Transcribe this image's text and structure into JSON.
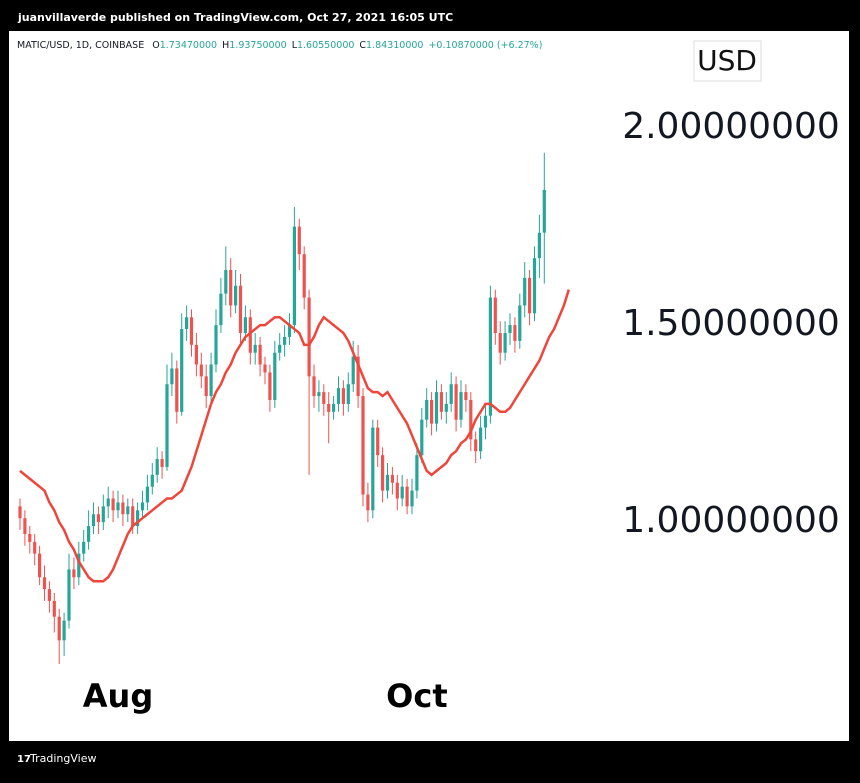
{
  "header": {
    "title": "juanvillaverde published on TradingView.com, Oct 27, 2021 16:05 UTC"
  },
  "footer": {
    "brand": "TradingView"
  },
  "chart_data": {
    "type": "candlestick",
    "legend": {
      "symbol": "MATIC/USD, 1D, COINBASE",
      "items": [
        {
          "label": "O",
          "value": "1.73470000"
        },
        {
          "label": "H",
          "value": "1.93750000"
        },
        {
          "label": "L",
          "value": "1.60550000"
        },
        {
          "label": "C",
          "value": "1.84310000"
        }
      ],
      "change": "+0.10870000 (+6.27%)"
    },
    "currency": "USD",
    "categories": [
      null,
      null,
      null,
      null,
      null,
      null,
      null,
      null,
      null,
      null,
      null,
      null,
      null,
      null,
      null,
      null,
      null,
      null,
      null,
      null,
      "Aug",
      null,
      null,
      null,
      null,
      null,
      null,
      null,
      null,
      null,
      null,
      null,
      null,
      null,
      null,
      null,
      null,
      null,
      null,
      null,
      null,
      null,
      null,
      null,
      null,
      null,
      null,
      null,
      null,
      null,
      null,
      null,
      null,
      null,
      null,
      null,
      null,
      null,
      null,
      null,
      null,
      null,
      null,
      null,
      null,
      null,
      null,
      null,
      null,
      null,
      null,
      null,
      null,
      null,
      null,
      null,
      null,
      null,
      null,
      null,
      null,
      "Oct",
      null,
      null,
      null,
      null,
      null,
      null,
      null,
      null,
      null,
      null,
      null,
      null,
      null,
      null,
      null,
      null,
      null,
      null,
      null,
      null,
      null,
      null,
      null,
      null,
      null,
      null,
      null,
      null,
      null,
      null,
      null
    ],
    "open": [
      1.04,
      1.01,
      0.97,
      0.95,
      0.92,
      0.86,
      0.83,
      0.8,
      0.76,
      0.7,
      0.75,
      0.88,
      0.86,
      0.92,
      0.95,
      0.99,
      1.02,
      1.0,
      1.04,
      1.06,
      1.03,
      1.05,
      1.02,
      1.04,
      0.99,
      1.03,
      1.05,
      1.09,
      1.12,
      1.16,
      1.14,
      1.35,
      1.39,
      1.28,
      1.49,
      1.52,
      1.45,
      1.4,
      1.37,
      1.32,
      1.4,
      1.5,
      1.58,
      1.64,
      1.55,
      1.6,
      1.48,
      1.52,
      1.43,
      1.45,
      1.4,
      1.38,
      1.31,
      1.43,
      1.45,
      1.47,
      1.5,
      1.75,
      1.68,
      1.57,
      1.37,
      1.32,
      1.33,
      1.3,
      1.28,
      1.3,
      1.34,
      1.3,
      1.35,
      1.42,
      1.32,
      1.07,
      1.03,
      1.24,
      1.17,
      1.08,
      1.12,
      1.1,
      1.06,
      1.09,
      1.04,
      1.08,
      1.17,
      1.26,
      1.31,
      1.25,
      1.33,
      1.28,
      1.3,
      1.35,
      1.26,
      1.33,
      1.31,
      1.21,
      1.18,
      1.24,
      1.27,
      1.57,
      1.48,
      1.43,
      1.48,
      1.5,
      1.46,
      1.55,
      1.62,
      1.53,
      1.67,
      1.7347,
      null,
      null,
      null,
      null,
      null
    ],
    "high": [
      1.06,
      1.03,
      0.99,
      0.97,
      0.94,
      0.89,
      0.85,
      0.82,
      0.78,
      0.77,
      0.92,
      0.91,
      0.95,
      0.98,
      1.03,
      1.05,
      1.04,
      1.07,
      1.09,
      1.08,
      1.08,
      1.07,
      1.06,
      1.06,
      1.05,
      1.08,
      1.12,
      1.15,
      1.19,
      1.18,
      1.4,
      1.43,
      1.41,
      1.53,
      1.55,
      1.54,
      1.48,
      1.43,
      1.4,
      1.43,
      1.54,
      1.62,
      1.7,
      1.67,
      1.64,
      1.63,
      1.55,
      1.54,
      1.48,
      1.47,
      1.42,
      1.4,
      1.46,
      1.48,
      1.5,
      1.53,
      1.8,
      1.77,
      1.7,
      1.59,
      1.4,
      1.36,
      1.35,
      1.33,
      1.32,
      1.37,
      1.36,
      1.38,
      1.46,
      1.45,
      1.34,
      1.1,
      1.26,
      1.26,
      1.19,
      1.15,
      1.14,
      1.12,
      1.12,
      1.11,
      1.11,
      1.2,
      1.29,
      1.34,
      1.33,
      1.36,
      1.35,
      1.33,
      1.38,
      1.37,
      1.36,
      1.35,
      1.33,
      1.23,
      1.27,
      1.3,
      1.6,
      1.59,
      1.51,
      1.51,
      1.53,
      1.52,
      1.58,
      1.66,
      1.64,
      1.7,
      1.78,
      1.9375,
      null,
      null,
      null,
      null,
      null
    ],
    "low": [
      0.98,
      0.94,
      0.92,
      0.89,
      0.84,
      0.8,
      0.77,
      0.72,
      0.64,
      0.66,
      0.73,
      0.83,
      0.84,
      0.9,
      0.93,
      0.97,
      0.97,
      0.98,
      1.01,
      1.0,
      1.01,
      0.99,
      1.0,
      0.97,
      0.97,
      1.01,
      1.03,
      1.07,
      1.1,
      1.11,
      1.13,
      1.32,
      1.25,
      1.27,
      1.46,
      1.42,
      1.37,
      1.34,
      1.29,
      1.3,
      1.38,
      1.48,
      1.55,
      1.52,
      1.53,
      1.45,
      1.46,
      1.4,
      1.4,
      1.37,
      1.35,
      1.28,
      1.29,
      1.41,
      1.42,
      1.45,
      1.48,
      1.64,
      1.54,
      1.12,
      1.29,
      1.28,
      1.27,
      1.2,
      1.26,
      1.28,
      1.27,
      1.28,
      1.33,
      1.29,
      1.04,
      1.0,
      1.01,
      1.14,
      1.05,
      1.06,
      1.07,
      1.03,
      1.04,
      1.02,
      1.02,
      1.06,
      1.15,
      1.24,
      1.22,
      1.23,
      1.26,
      1.25,
      1.28,
      1.23,
      1.24,
      1.28,
      1.18,
      1.15,
      1.16,
      1.21,
      1.25,
      1.45,
      1.4,
      1.41,
      1.45,
      1.43,
      1.44,
      1.52,
      1.5,
      1.51,
      1.62,
      1.6055,
      null,
      null,
      null,
      null,
      null
    ],
    "close": [
      1.01,
      0.97,
      0.95,
      0.92,
      0.86,
      0.83,
      0.8,
      0.76,
      0.7,
      0.75,
      0.88,
      0.86,
      0.92,
      0.95,
      0.99,
      1.02,
      1.0,
      1.04,
      1.06,
      1.03,
      1.05,
      1.02,
      1.04,
      0.99,
      1.03,
      1.05,
      1.09,
      1.12,
      1.16,
      1.14,
      1.35,
      1.39,
      1.28,
      1.49,
      1.52,
      1.45,
      1.4,
      1.37,
      1.32,
      1.4,
      1.5,
      1.58,
      1.64,
      1.55,
      1.6,
      1.48,
      1.52,
      1.43,
      1.45,
      1.4,
      1.38,
      1.31,
      1.43,
      1.45,
      1.47,
      1.5,
      1.75,
      1.68,
      1.57,
      1.37,
      1.32,
      1.33,
      1.3,
      1.28,
      1.3,
      1.34,
      1.3,
      1.35,
      1.42,
      1.32,
      1.07,
      1.03,
      1.24,
      1.17,
      1.08,
      1.12,
      1.1,
      1.06,
      1.09,
      1.04,
      1.08,
      1.17,
      1.26,
      1.31,
      1.25,
      1.33,
      1.28,
      1.3,
      1.35,
      1.26,
      1.33,
      1.31,
      1.21,
      1.18,
      1.24,
      1.27,
      1.57,
      1.48,
      1.43,
      1.48,
      1.5,
      1.46,
      1.55,
      1.62,
      1.53,
      1.67,
      1.7344,
      1.8431,
      null,
      null,
      null,
      null,
      null
    ],
    "up_color": "#26a69a",
    "down_color": "#ef5350",
    "ma": {
      "color": "#f0453a",
      "values": [
        1.13,
        1.12,
        1.11,
        1.1,
        1.09,
        1.08,
        1.05,
        1.03,
        1.0,
        0.98,
        0.95,
        0.93,
        0.9,
        0.88,
        0.86,
        0.85,
        0.85,
        0.85,
        0.86,
        0.88,
        0.91,
        0.94,
        0.97,
        0.99,
        1.0,
        1.01,
        1.02,
        1.03,
        1.04,
        1.05,
        1.06,
        1.06,
        1.07,
        1.08,
        1.11,
        1.14,
        1.18,
        1.22,
        1.26,
        1.3,
        1.33,
        1.35,
        1.38,
        1.4,
        1.43,
        1.45,
        1.47,
        1.48,
        1.49,
        1.5,
        1.5,
        1.51,
        1.52,
        1.52,
        1.51,
        1.5,
        1.49,
        1.48,
        1.45,
        1.45,
        1.47,
        1.5,
        1.52,
        1.51,
        1.5,
        1.49,
        1.48,
        1.46,
        1.43,
        1.4,
        1.37,
        1.34,
        1.33,
        1.33,
        1.32,
        1.33,
        1.31,
        1.29,
        1.27,
        1.25,
        1.22,
        1.19,
        1.16,
        1.13,
        1.12,
        1.13,
        1.14,
        1.15,
        1.17,
        1.18,
        1.2,
        1.21,
        1.23,
        1.26,
        1.28,
        1.3,
        1.3,
        1.29,
        1.28,
        1.28,
        1.29,
        1.31,
        1.33,
        1.35,
        1.37,
        1.39,
        1.41,
        1.44,
        1.47,
        1.49,
        1.52,
        1.55,
        1.59
      ]
    },
    "ylim": [
      0.447,
      2.244
    ],
    "yticks": [
      {
        "value": 1,
        "label": "1.00000000"
      },
      {
        "value": 1.5,
        "label": "1.50000000"
      },
      {
        "value": 2,
        "label": "2.00000000"
      }
    ]
  }
}
